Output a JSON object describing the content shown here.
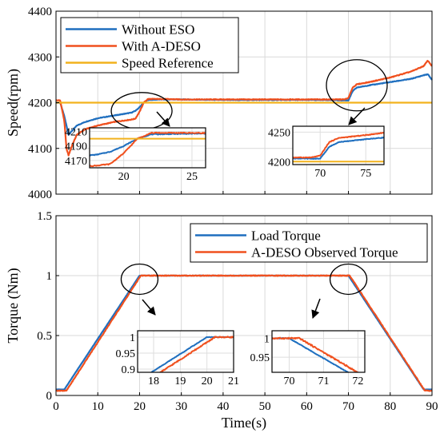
{
  "chart_data": [
    {
      "type": "line",
      "ylabel": "Speed(rpm)",
      "xlabel": "",
      "xlim": [
        0,
        90
      ],
      "ylim": [
        4000,
        4400
      ],
      "xticks": [
        0,
        10,
        20,
        30,
        40,
        50,
        60,
        70,
        80,
        90
      ],
      "yticks": [
        4000,
        4100,
        4200,
        4300,
        4400
      ],
      "xtick_labels_visible": false,
      "grid": true,
      "legend_position": "top-left",
      "colors": {
        "without_eso": "#1f6fbf",
        "with_adeso": "#f0501e",
        "reference": "#f2b21d"
      },
      "series": [
        {
          "name": "Without ESO",
          "color": "#1f6fbf",
          "x": [
            0,
            1,
            2,
            3,
            4,
            5,
            7,
            10,
            14,
            18,
            19,
            20,
            21,
            22,
            25,
            30,
            40,
            50,
            60,
            65,
            69,
            70,
            71,
            72,
            75,
            80,
            85,
            88,
            89,
            90
          ],
          "values": [
            4200,
            4200,
            4170,
            4130,
            4140,
            4150,
            4158,
            4166,
            4172,
            4178,
            4182,
            4190,
            4200,
            4206,
            4207,
            4207,
            4206,
            4206,
            4206,
            4206,
            4205,
            4205,
            4225,
            4233,
            4238,
            4245,
            4252,
            4260,
            4262,
            4250
          ]
        },
        {
          "name": "With A-DESO",
          "color": "#f0501e",
          "x": [
            0,
            1,
            2,
            2.5,
            3,
            4,
            5,
            7,
            10,
            14,
            18,
            19,
            20,
            21,
            22,
            25,
            30,
            40,
            50,
            60,
            65,
            69,
            70,
            71,
            72,
            75,
            80,
            85,
            88,
            89,
            90
          ],
          "values": [
            4205,
            4205,
            4160,
            4100,
            4085,
            4110,
            4130,
            4142,
            4150,
            4158,
            4163,
            4165,
            4180,
            4200,
            4208,
            4208,
            4207,
            4207,
            4207,
            4207,
            4207,
            4207,
            4210,
            4233,
            4240,
            4245,
            4255,
            4268,
            4280,
            4292,
            4280
          ]
        },
        {
          "name": "Speed Reference",
          "color": "#f2b21d",
          "x": [
            0,
            90
          ],
          "values": [
            4200,
            4200
          ]
        }
      ],
      "annotations": [
        {
          "type": "ellipse",
          "center": [
            20.5,
            4182
          ],
          "label": ""
        },
        {
          "type": "ellipse",
          "center": [
            72,
            4238
          ],
          "label": ""
        }
      ],
      "insets": [
        {
          "xlim": [
            17.5,
            26
          ],
          "ylim": [
            4160,
            4215
          ],
          "xticks": [
            20,
            25
          ],
          "yticks": [
            4170,
            4190,
            4210
          ],
          "series_refs": [
            "Without ESO",
            "With A-DESO",
            "Speed Reference"
          ]
        },
        {
          "xlim": [
            67,
            77
          ],
          "ylim": [
            4195,
            4260
          ],
          "xticks": [
            70,
            75
          ],
          "yticks": [
            4200,
            4250
          ],
          "series_refs": [
            "Without ESO",
            "With A-DESO",
            "Speed Reference"
          ]
        }
      ]
    },
    {
      "type": "line",
      "ylabel": "Torque (Nm)",
      "xlabel": "Time(s)",
      "xlim": [
        0,
        90
      ],
      "ylim": [
        0,
        1.5
      ],
      "xticks": [
        0,
        10,
        20,
        30,
        40,
        50,
        60,
        70,
        80,
        90
      ],
      "yticks": [
        0,
        0.5,
        1,
        1.5
      ],
      "grid": true,
      "legend_position": "top-right",
      "colors": {
        "load": "#1f6fbf",
        "observed": "#f0501e"
      },
      "series": [
        {
          "name": "Load Torque",
          "color": "#1f6fbf",
          "x": [
            0,
            2,
            20,
            70,
            88,
            90
          ],
          "values": [
            0.05,
            0.05,
            1.0,
            1.0,
            0.05,
            0.05
          ]
        },
        {
          "name": "A-DESO Observed Torque",
          "color": "#f0501e",
          "x": [
            0,
            2.5,
            20.3,
            70.3,
            88.3,
            90
          ],
          "values": [
            0.04,
            0.04,
            1.0,
            1.0,
            0.04,
            0.04
          ]
        }
      ],
      "annotations": [
        {
          "type": "ellipse",
          "center": [
            20,
            0.97
          ],
          "label": ""
        },
        {
          "type": "ellipse",
          "center": [
            70,
            0.97
          ],
          "label": ""
        }
      ],
      "insets": [
        {
          "xlim": [
            17.4,
            21
          ],
          "ylim": [
            0.89,
            1.02
          ],
          "xticks": [
            18,
            19,
            20,
            21
          ],
          "yticks": [
            0.9,
            0.95,
            1
          ],
          "series_refs": [
            "Load Torque",
            "A-DESO Observed Torque"
          ]
        },
        {
          "xlim": [
            69.5,
            72.2
          ],
          "ylim": [
            0.91,
            1.02
          ],
          "xticks": [
            70,
            71,
            72
          ],
          "yticks": [
            0.95,
            1
          ],
          "series_refs": [
            "Load Torque",
            "A-DESO Observed Torque"
          ]
        }
      ]
    }
  ]
}
